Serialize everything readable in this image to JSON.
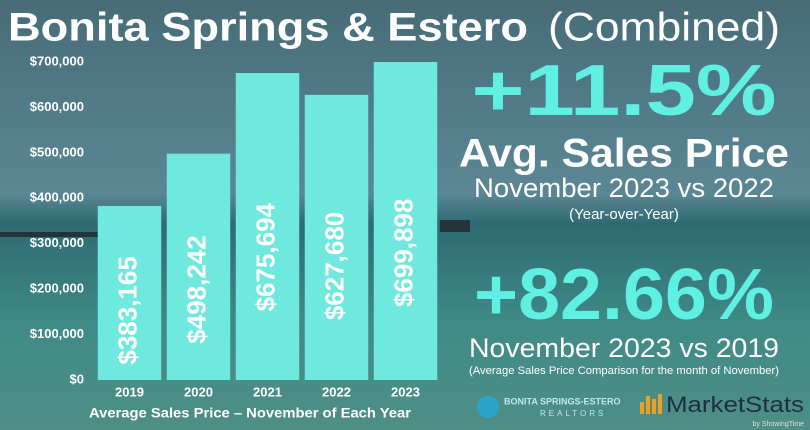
{
  "chart_data": {
    "type": "bar",
    "title": "Bonita Springs & Estero",
    "subtitle": "(Combined)",
    "x_label": "Average Sales Price – November of Each Year",
    "categories": [
      "2019",
      "2020",
      "2021",
      "2022",
      "2023"
    ],
    "values": [
      383165,
      498242,
      675694,
      627680,
      699898
    ],
    "value_labels": [
      "$383,165",
      "$498,242",
      "$675,694",
      "$627,680",
      "$699,898"
    ],
    "color": "#6fe9de",
    "ylim": [
      0,
      700000
    ],
    "yticks": [
      {
        "value": 0,
        "label": "$0"
      },
      {
        "value": 100000,
        "label": "$100,000"
      },
      {
        "value": 200000,
        "label": "$200,000"
      },
      {
        "value": 300000,
        "label": "$300,000"
      },
      {
        "value": 400000,
        "label": "$400,000"
      },
      {
        "value": 500000,
        "label": "$500,000"
      },
      {
        "value": 600000,
        "label": "$600,000"
      },
      {
        "value": 700000,
        "label": "$700,000"
      }
    ],
    "grid": false
  },
  "stats": [
    {
      "value": "+11.5%",
      "label": "Avg. Sales Price",
      "comparison": "November 2023 vs 2022",
      "note": "(Year-over-Year)"
    },
    {
      "value": "+82.66%",
      "comparison": "November 2023 vs 2019",
      "note": "(Average Sales Price Comparison for the month of November)"
    }
  ],
  "logos": {
    "realtors_top": "BONITA SPRINGS-ESTERO",
    "realtors_bottom": "REALTORS",
    "marketstats": "MarketStats",
    "marketstats_by": "by ShowingTime"
  }
}
